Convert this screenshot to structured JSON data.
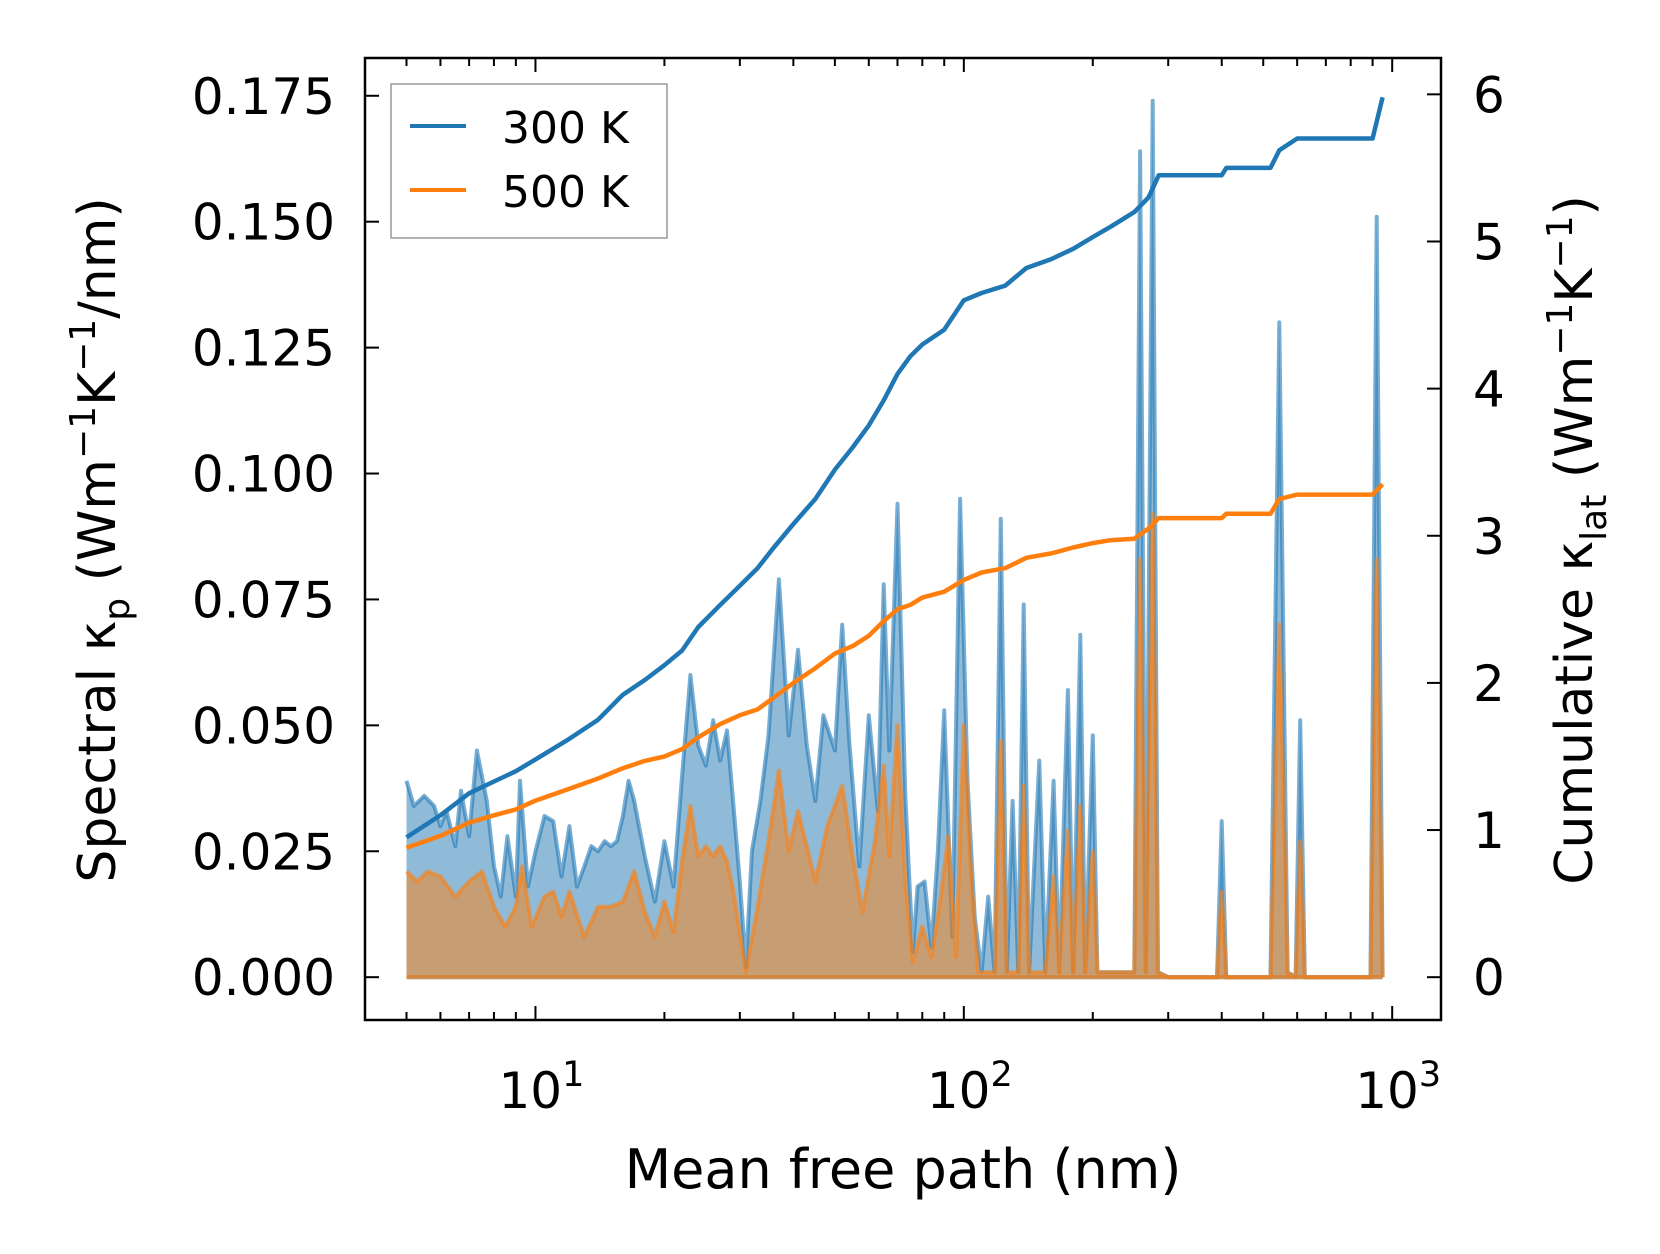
{
  "chart_data": {
    "type": "area",
    "xscale": "log",
    "xlim": [
      4.0,
      1300
    ],
    "x_ticks": [
      10,
      100,
      1000
    ],
    "x_tick_labels": [
      {
        "base": "10",
        "exp": "1"
      },
      {
        "base": "10",
        "exp": "2"
      },
      {
        "base": "10",
        "exp": "3"
      }
    ],
    "xlabel": "Mean free path (nm)",
    "ylabel_left": {
      "pre": "Spectral κ",
      "sub": "p",
      "unit_open": " (Wm",
      "exp1": "−1",
      "mid": "K",
      "exp2": "−1",
      "unit_close": "/nm)"
    },
    "ylabel_right": {
      "pre": "Cumulative κ",
      "sub": "lat",
      "unit_open": " (Wm",
      "exp1": "−1",
      "mid": "K",
      "exp2": "−1",
      "unit_close": ")"
    },
    "ylim_left": [
      -0.0085,
      0.1825
    ],
    "ylim_right": [
      -0.291,
      6.247
    ],
    "y_ticks_left": [
      "0.000",
      "0.025",
      "0.050",
      "0.075",
      "0.100",
      "0.125",
      "0.150",
      "0.175"
    ],
    "y_ticks_right": [
      "0",
      "1",
      "2",
      "3",
      "4",
      "5",
      "6"
    ],
    "legend": {
      "position": "upper-left",
      "entries": [
        "300 K",
        "500 K"
      ]
    },
    "colors": {
      "300K": "#1f77b4",
      "500K": "#ff7f0e"
    },
    "series": [
      {
        "name": "300 K",
        "spectral": [
          [
            5.0,
            0.039
          ],
          [
            5.2,
            0.034
          ],
          [
            5.5,
            0.036
          ],
          [
            5.8,
            0.034
          ],
          [
            6.0,
            0.03
          ],
          [
            6.2,
            0.033
          ],
          [
            6.5,
            0.026
          ],
          [
            6.7,
            0.037
          ],
          [
            7.0,
            0.028
          ],
          [
            7.3,
            0.045
          ],
          [
            7.7,
            0.035
          ],
          [
            8.0,
            0.022
          ],
          [
            8.3,
            0.016
          ],
          [
            8.6,
            0.028
          ],
          [
            9.0,
            0.016
          ],
          [
            9.2,
            0.039
          ],
          [
            9.6,
            0.018
          ],
          [
            10.0,
            0.025
          ],
          [
            10.5,
            0.032
          ],
          [
            11.0,
            0.031
          ],
          [
            11.5,
            0.02
          ],
          [
            12.0,
            0.03
          ],
          [
            12.5,
            0.018
          ],
          [
            13.0,
            0.022
          ],
          [
            13.5,
            0.026
          ],
          [
            14.0,
            0.025
          ],
          [
            14.5,
            0.027
          ],
          [
            15.0,
            0.026
          ],
          [
            15.5,
            0.027
          ],
          [
            16.0,
            0.032
          ],
          [
            16.5,
            0.039
          ],
          [
            17.0,
            0.035
          ],
          [
            18.0,
            0.024
          ],
          [
            19.0,
            0.015
          ],
          [
            20.0,
            0.027
          ],
          [
            21.0,
            0.018
          ],
          [
            22.0,
            0.04
          ],
          [
            23.0,
            0.06
          ],
          [
            24.0,
            0.046
          ],
          [
            25.0,
            0.042
          ],
          [
            26.0,
            0.051
          ],
          [
            27.0,
            0.043
          ],
          [
            28.0,
            0.049
          ],
          [
            29.0,
            0.034
          ],
          [
            30.0,
            0.019
          ],
          [
            31.0,
            0.002
          ],
          [
            32.0,
            0.025
          ],
          [
            33.5,
            0.035
          ],
          [
            35.0,
            0.048
          ],
          [
            37.0,
            0.079
          ],
          [
            39.0,
            0.048
          ],
          [
            41.0,
            0.065
          ],
          [
            43.0,
            0.046
          ],
          [
            45.0,
            0.035
          ],
          [
            47.0,
            0.052
          ],
          [
            50.0,
            0.045
          ],
          [
            52.0,
            0.07
          ],
          [
            54.0,
            0.047
          ],
          [
            57.0,
            0.022
          ],
          [
            60.0,
            0.052
          ],
          [
            63.0,
            0.033
          ],
          [
            65.0,
            0.078
          ],
          [
            67.0,
            0.045
          ],
          [
            70.0,
            0.094
          ],
          [
            73.0,
            0.036
          ],
          [
            76.0,
            0.005
          ],
          [
            78.0,
            0.018
          ],
          [
            81.0,
            0.019
          ],
          [
            84.0,
            0.006
          ],
          [
            87.0,
            0.025
          ],
          [
            90.0,
            0.053
          ],
          [
            94.0,
            0.008
          ],
          [
            98.0,
            0.095
          ],
          [
            102.0,
            0.039
          ],
          [
            106.0,
            0.012
          ],
          [
            110.0,
            0.001
          ],
          [
            114.0,
            0.016
          ],
          [
            118.0,
            0.001
          ],
          [
            122.0,
            0.091
          ],
          [
            126.0,
            0.001
          ],
          [
            130.0,
            0.035
          ],
          [
            134.0,
            0.001
          ],
          [
            138.0,
            0.074
          ],
          [
            142.0,
            0.001
          ],
          [
            150.0,
            0.043
          ],
          [
            155.0,
            0.001
          ],
          [
            162.0,
            0.039
          ],
          [
            167.0,
            0.001
          ],
          [
            175.0,
            0.057
          ],
          [
            180.0,
            0.001
          ],
          [
            187.0,
            0.068
          ],
          [
            192.0,
            0.001
          ],
          [
            200.0,
            0.048
          ],
          [
            205.0,
            0.001
          ],
          [
            215.0,
            0.001
          ],
          [
            250.0,
            0.001
          ],
          [
            258.0,
            0.164
          ],
          [
            266.0,
            0.001
          ],
          [
            276.0,
            0.174
          ],
          [
            284.0,
            0.001
          ],
          [
            300.0,
            0.0
          ],
          [
            390.0,
            0.0
          ],
          [
            400.0,
            0.031
          ],
          [
            410.0,
            0.0
          ],
          [
            520.0,
            0.0
          ],
          [
            545.0,
            0.13
          ],
          [
            570.0,
            0.001
          ],
          [
            595.0,
            0.0
          ],
          [
            610.0,
            0.051
          ],
          [
            625.0,
            0.0
          ],
          [
            890.0,
            0.0
          ],
          [
            920.0,
            0.151
          ],
          [
            950.0,
            0.0
          ]
        ],
        "cumulative": [
          [
            5.0,
            0.95
          ],
          [
            6.0,
            1.1
          ],
          [
            7.0,
            1.25
          ],
          [
            8.0,
            1.33
          ],
          [
            9.0,
            1.4
          ],
          [
            10.0,
            1.48
          ],
          [
            12.0,
            1.62
          ],
          [
            14.0,
            1.75
          ],
          [
            16.0,
            1.92
          ],
          [
            18.0,
            2.02
          ],
          [
            20.0,
            2.12
          ],
          [
            22.0,
            2.22
          ],
          [
            24.0,
            2.38
          ],
          [
            27.0,
            2.53
          ],
          [
            30.0,
            2.66
          ],
          [
            33.0,
            2.78
          ],
          [
            36.0,
            2.92
          ],
          [
            40.0,
            3.08
          ],
          [
            45.0,
            3.25
          ],
          [
            50.0,
            3.45
          ],
          [
            55.0,
            3.6
          ],
          [
            60.0,
            3.75
          ],
          [
            65.0,
            3.92
          ],
          [
            70.0,
            4.1
          ],
          [
            75.0,
            4.22
          ],
          [
            80.0,
            4.3
          ],
          [
            90.0,
            4.4
          ],
          [
            100.0,
            4.6
          ],
          [
            110.0,
            4.65
          ],
          [
            125.0,
            4.7
          ],
          [
            140.0,
            4.82
          ],
          [
            160.0,
            4.88
          ],
          [
            180.0,
            4.95
          ],
          [
            200.0,
            5.03
          ],
          [
            220.0,
            5.1
          ],
          [
            250.0,
            5.2
          ],
          [
            270.0,
            5.3
          ],
          [
            285.0,
            5.45
          ],
          [
            400.0,
            5.45
          ],
          [
            410.0,
            5.5
          ],
          [
            520.0,
            5.5
          ],
          [
            545.0,
            5.62
          ],
          [
            600.0,
            5.7
          ],
          [
            900.0,
            5.7
          ],
          [
            950.0,
            5.98
          ]
        ]
      },
      {
        "name": "500 K",
        "spectral": [
          [
            5.0,
            0.021
          ],
          [
            5.3,
            0.019
          ],
          [
            5.6,
            0.021
          ],
          [
            6.0,
            0.02
          ],
          [
            6.5,
            0.016
          ],
          [
            7.0,
            0.019
          ],
          [
            7.5,
            0.021
          ],
          [
            8.0,
            0.014
          ],
          [
            8.5,
            0.01
          ],
          [
            9.0,
            0.014
          ],
          [
            9.3,
            0.022
          ],
          [
            9.8,
            0.01
          ],
          [
            10.5,
            0.016
          ],
          [
            11.0,
            0.017
          ],
          [
            11.5,
            0.012
          ],
          [
            12.0,
            0.017
          ],
          [
            13.0,
            0.008
          ],
          [
            14.0,
            0.014
          ],
          [
            15.0,
            0.014
          ],
          [
            16.0,
            0.015
          ],
          [
            17.0,
            0.021
          ],
          [
            18.0,
            0.013
          ],
          [
            19.0,
            0.008
          ],
          [
            20.0,
            0.015
          ],
          [
            21.0,
            0.009
          ],
          [
            22.0,
            0.023
          ],
          [
            23.0,
            0.034
          ],
          [
            24.0,
            0.024
          ],
          [
            25.0,
            0.026
          ],
          [
            26.0,
            0.024
          ],
          [
            27.0,
            0.026
          ],
          [
            28.0,
            0.023
          ],
          [
            29.0,
            0.017
          ],
          [
            31.0,
            0.001
          ],
          [
            33.0,
            0.014
          ],
          [
            35.0,
            0.027
          ],
          [
            37.0,
            0.041
          ],
          [
            39.0,
            0.025
          ],
          [
            41.0,
            0.033
          ],
          [
            43.0,
            0.026
          ],
          [
            45.0,
            0.019
          ],
          [
            48.0,
            0.03
          ],
          [
            52.0,
            0.038
          ],
          [
            55.0,
            0.024
          ],
          [
            58.0,
            0.013
          ],
          [
            62.0,
            0.027
          ],
          [
            65.0,
            0.042
          ],
          [
            67.0,
            0.024
          ],
          [
            70.0,
            0.05
          ],
          [
            73.0,
            0.019
          ],
          [
            76.0,
            0.003
          ],
          [
            80.0,
            0.01
          ],
          [
            84.0,
            0.004
          ],
          [
            88.0,
            0.015
          ],
          [
            92.0,
            0.028
          ],
          [
            96.0,
            0.004
          ],
          [
            100.0,
            0.05
          ],
          [
            104.0,
            0.02
          ],
          [
            108.0,
            0.001
          ],
          [
            118.0,
            0.001
          ],
          [
            122.0,
            0.047
          ],
          [
            126.0,
            0.001
          ],
          [
            134.0,
            0.001
          ],
          [
            138.0,
            0.038
          ],
          [
            142.0,
            0.001
          ],
          [
            155.0,
            0.001
          ],
          [
            162.0,
            0.02
          ],
          [
            167.0,
            0.001
          ],
          [
            175.0,
            0.029
          ],
          [
            180.0,
            0.001
          ],
          [
            187.0,
            0.034
          ],
          [
            192.0,
            0.001
          ],
          [
            200.0,
            0.025
          ],
          [
            205.0,
            0.001
          ],
          [
            250.0,
            0.001
          ],
          [
            258.0,
            0.083
          ],
          [
            266.0,
            0.001
          ],
          [
            276.0,
            0.092
          ],
          [
            284.0,
            0.001
          ],
          [
            300.0,
            0.0
          ],
          [
            390.0,
            0.0
          ],
          [
            400.0,
            0.017
          ],
          [
            410.0,
            0.0
          ],
          [
            520.0,
            0.0
          ],
          [
            545.0,
            0.07
          ],
          [
            570.0,
            0.001
          ],
          [
            595.0,
            0.0
          ],
          [
            610.0,
            0.027
          ],
          [
            625.0,
            0.0
          ],
          [
            890.0,
            0.0
          ],
          [
            920.0,
            0.083
          ],
          [
            950.0,
            0.0
          ]
        ],
        "cumulative": [
          [
            5.0,
            0.88
          ],
          [
            6.0,
            0.96
          ],
          [
            7.0,
            1.05
          ],
          [
            8.0,
            1.1
          ],
          [
            9.0,
            1.14
          ],
          [
            10.0,
            1.2
          ],
          [
            12.0,
            1.28
          ],
          [
            14.0,
            1.35
          ],
          [
            16.0,
            1.42
          ],
          [
            18.0,
            1.47
          ],
          [
            20.0,
            1.5
          ],
          [
            22.0,
            1.55
          ],
          [
            24.0,
            1.63
          ],
          [
            27.0,
            1.72
          ],
          [
            30.0,
            1.78
          ],
          [
            33.0,
            1.82
          ],
          [
            36.0,
            1.9
          ],
          [
            40.0,
            2.0
          ],
          [
            45.0,
            2.1
          ],
          [
            50.0,
            2.2
          ],
          [
            55.0,
            2.25
          ],
          [
            60.0,
            2.32
          ],
          [
            65.0,
            2.42
          ],
          [
            70.0,
            2.5
          ],
          [
            75.0,
            2.53
          ],
          [
            80.0,
            2.58
          ],
          [
            90.0,
            2.62
          ],
          [
            100.0,
            2.7
          ],
          [
            110.0,
            2.75
          ],
          [
            125.0,
            2.78
          ],
          [
            140.0,
            2.85
          ],
          [
            160.0,
            2.88
          ],
          [
            180.0,
            2.92
          ],
          [
            200.0,
            2.95
          ],
          [
            220.0,
            2.97
          ],
          [
            250.0,
            2.98
          ],
          [
            270.0,
            3.05
          ],
          [
            285.0,
            3.12
          ],
          [
            400.0,
            3.12
          ],
          [
            410.0,
            3.15
          ],
          [
            520.0,
            3.15
          ],
          [
            545.0,
            3.25
          ],
          [
            600.0,
            3.28
          ],
          [
            900.0,
            3.28
          ],
          [
            950.0,
            3.35
          ]
        ]
      }
    ]
  }
}
